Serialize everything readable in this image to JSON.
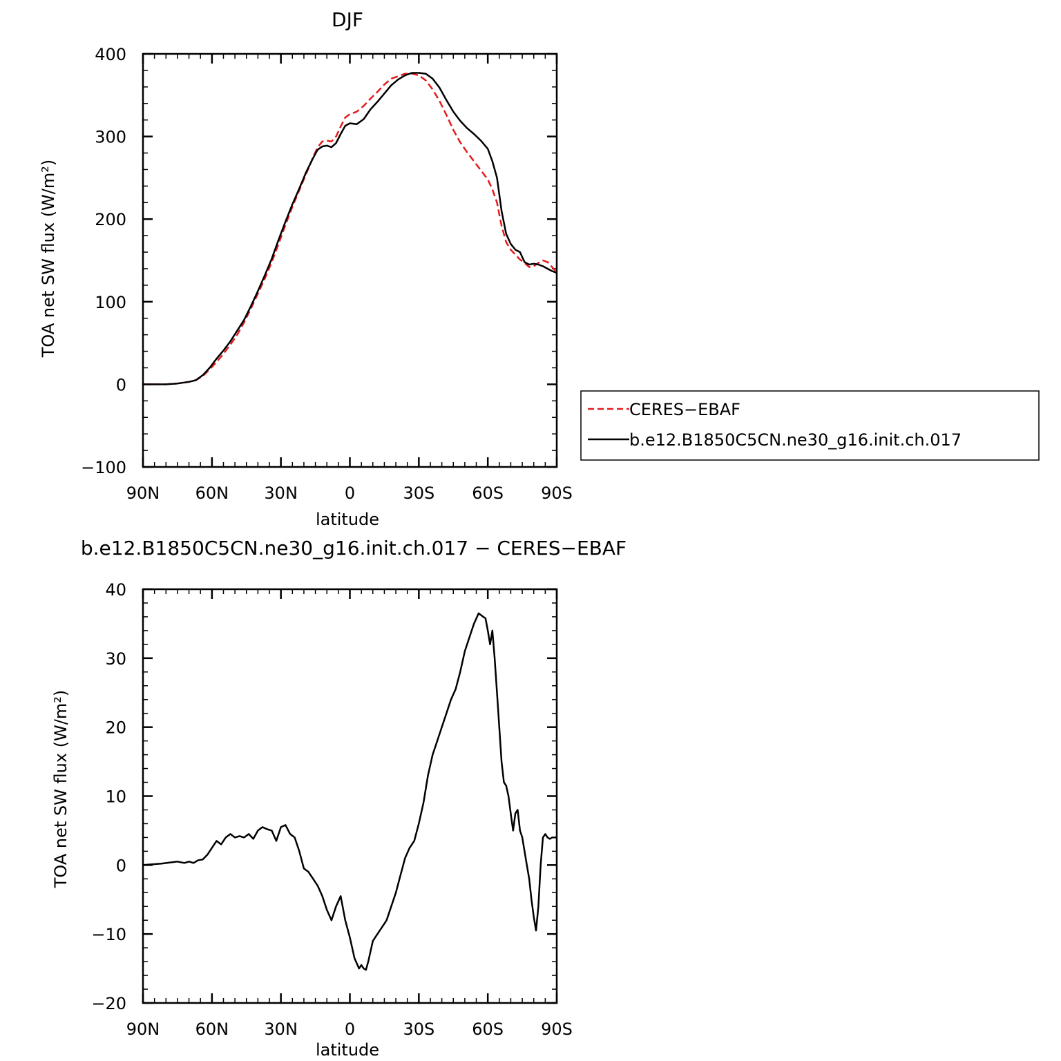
{
  "chart_data": [
    {
      "type": "line",
      "title": "DJF",
      "xlabel": "latitude",
      "ylabel": "TOA net SW flux (W/m²)",
      "xlim": [
        90,
        -90
      ],
      "ylim": [
        -100,
        400
      ],
      "xticks": [
        90,
        60,
        30,
        0,
        -30,
        -60,
        -90
      ],
      "xtick_labels": [
        "90N",
        "60N",
        "30N",
        "0",
        "30S",
        "60S",
        "90S"
      ],
      "yticks": [
        -100,
        0,
        100,
        200,
        300,
        400
      ],
      "ytick_labels": [
        "−100",
        "0",
        "100",
        "200",
        "300",
        "400"
      ],
      "legend_position": "right",
      "series": [
        {
          "name": "CERES−EBAF",
          "color": "#e41a1c",
          "style": "dashed",
          "x": [
            90,
            85,
            80,
            75,
            70,
            67,
            64,
            61,
            58,
            55,
            52,
            49,
            46,
            43,
            40,
            37,
            34,
            31,
            28,
            25,
            22,
            19,
            16,
            14,
            12,
            10,
            8,
            6,
            4,
            2,
            0,
            -3,
            -6,
            -9,
            -12,
            -15,
            -18,
            -21,
            -24,
            -27,
            -30,
            -33,
            -36,
            -39,
            -42,
            -45,
            -48,
            -51,
            -54,
            -57,
            -60,
            -62,
            -64,
            -66,
            -68,
            -70,
            -72,
            -74,
            -76,
            -78,
            -80,
            -82,
            -84,
            -86,
            -88,
            -90
          ],
          "y": [
            0,
            0,
            0,
            1,
            3,
            5,
            10,
            18,
            27,
            37,
            48,
            60,
            75,
            92,
            110,
            128,
            148,
            170,
            193,
            215,
            235,
            255,
            275,
            287,
            294,
            295,
            294,
            300,
            312,
            323,
            327,
            330,
            337,
            346,
            354,
            363,
            370,
            373,
            376,
            376,
            374,
            368,
            357,
            343,
            326,
            308,
            293,
            281,
            270,
            259,
            248,
            236,
            220,
            192,
            172,
            163,
            157,
            151,
            147,
            142,
            143,
            147,
            150,
            148,
            142,
            135
          ]
        },
        {
          "name": "b.e12.B1850C5CN.ne30_g16.init.ch.017",
          "color": "#000000",
          "style": "solid",
          "x": [
            90,
            85,
            80,
            75,
            70,
            67,
            64,
            61,
            58,
            55,
            52,
            49,
            46,
            43,
            40,
            37,
            34,
            31,
            28,
            25,
            22,
            19,
            16,
            14,
            12,
            10,
            8,
            6,
            4,
            2,
            0,
            -3,
            -6,
            -9,
            -12,
            -15,
            -18,
            -21,
            -24,
            -27,
            -30,
            -33,
            -36,
            -39,
            -42,
            -45,
            -48,
            -51,
            -54,
            -57,
            -60,
            -62,
            -64,
            -66,
            -68,
            -70,
            -72,
            -74,
            -76,
            -78,
            -80,
            -82,
            -84,
            -86,
            -88,
            -90
          ],
          "y": [
            0,
            0,
            0,
            1,
            3,
            5,
            11,
            20,
            31,
            41,
            52,
            65,
            78,
            95,
            113,
            132,
            152,
            175,
            197,
            218,
            237,
            257,
            274,
            284,
            288,
            289,
            287,
            292,
            303,
            313,
            316,
            315,
            321,
            333,
            342,
            352,
            362,
            369,
            374,
            377,
            377,
            376,
            370,
            359,
            344,
            330,
            319,
            310,
            303,
            295,
            285,
            270,
            250,
            210,
            182,
            170,
            163,
            160,
            148,
            145,
            146,
            145,
            143,
            140,
            137,
            135
          ]
        }
      ]
    },
    {
      "type": "line",
      "title": "b.e12.B1850C5CN.ne30_g16.init.ch.017 − CERES−EBAF",
      "xlabel": "latitude",
      "ylabel": "TOA net SW flux (W/m²)",
      "xlim": [
        90,
        -90
      ],
      "ylim": [
        -20,
        40
      ],
      "xticks": [
        90,
        60,
        30,
        0,
        -30,
        -60,
        -90
      ],
      "xtick_labels": [
        "90N",
        "60N",
        "30N",
        "0",
        "30S",
        "60S",
        "90S"
      ],
      "yticks": [
        -20,
        -10,
        0,
        10,
        20,
        30,
        40
      ],
      "ytick_labels": [
        "−20",
        "−10",
        "0",
        "10",
        "20",
        "30",
        "40"
      ],
      "series": [
        {
          "color": "#000000",
          "style": "solid",
          "x": [
            90,
            82,
            75,
            72,
            70,
            68,
            66,
            64,
            62,
            60,
            58,
            56,
            54,
            52,
            50,
            48,
            46,
            44,
            42,
            40,
            38,
            36,
            34,
            32,
            30,
            28,
            26,
            24,
            22,
            20,
            18,
            16,
            14,
            12,
            10,
            8,
            6,
            4,
            2,
            0,
            -2,
            -4,
            -5,
            -6,
            -7,
            -8,
            -10,
            -12,
            -14,
            -16,
            -18,
            -20,
            -22,
            -24,
            -26,
            -28,
            -30,
            -32,
            -34,
            -36,
            -38,
            -40,
            -42,
            -44,
            -46,
            -48,
            -50,
            -52,
            -54,
            -56,
            -58,
            -59,
            -60,
            -61,
            -62,
            -63,
            -64,
            -65,
            -66,
            -67,
            -68,
            -69,
            -70,
            -71,
            -72,
            -73,
            -74,
            -75,
            -76,
            -77,
            -78,
            -79,
            -80,
            -81,
            -82,
            -83,
            -84,
            -85,
            -86,
            -87,
            -88,
            -89,
            -90
          ],
          "y": [
            0,
            0.2,
            0.5,
            0.3,
            0.5,
            0.3,
            0.7,
            0.8,
            1.5,
            2.5,
            3.5,
            3.0,
            4.0,
            4.5,
            4.0,
            4.2,
            4.0,
            4.5,
            3.8,
            5.0,
            5.5,
            5.2,
            5.0,
            3.5,
            5.5,
            5.8,
            4.5,
            4.0,
            2.0,
            -0.5,
            -1.0,
            -2.0,
            -3.0,
            -4.5,
            -6.5,
            -8.0,
            -6.0,
            -4.5,
            -8.0,
            -10.5,
            -13.5,
            -15.0,
            -14.5,
            -15.0,
            -15.2,
            -14.0,
            -11.0,
            -10.0,
            -9.0,
            -8.0,
            -6.0,
            -4.0,
            -1.5,
            1.0,
            2.5,
            3.5,
            6.0,
            9.0,
            13.0,
            16.0,
            18.0,
            20.0,
            22.0,
            24.0,
            25.5,
            28.0,
            31.0,
            33.0,
            35.0,
            36.5,
            36.0,
            35.8,
            34.0,
            32.0,
            34.0,
            30.0,
            25.0,
            20.0,
            15.0,
            12.0,
            11.5,
            10.0,
            7.5,
            5.0,
            7.5,
            8.0,
            5.0,
            4.0,
            2.0,
            0.0,
            -2.0,
            -5.0,
            -7.5,
            -9.5,
            -6.0,
            0.0,
            4.0,
            4.5,
            4.0,
            3.8,
            4.0,
            4.0,
            4.0
          ]
        }
      ]
    }
  ]
}
